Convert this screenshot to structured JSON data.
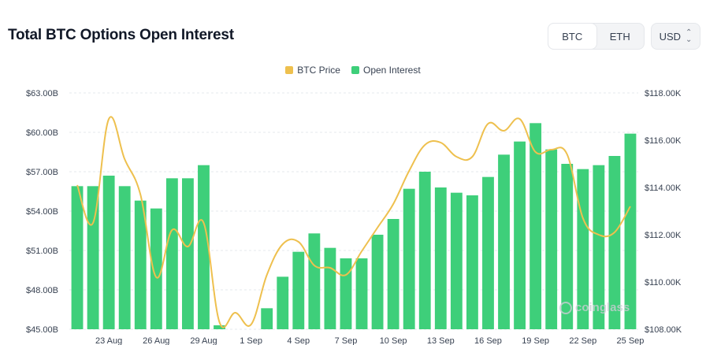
{
  "header": {
    "title": "Total BTC Options Open Interest",
    "asset_tabs": [
      {
        "label": "BTC",
        "active": true
      },
      {
        "label": "ETH",
        "active": false
      }
    ],
    "currency": {
      "label": "USD",
      "icon": "chevron-up-down-icon"
    }
  },
  "watermark": "coinglass",
  "colors": {
    "oi": "#3ecf7a",
    "price": "#eec04e",
    "grid": "#e6e8ec",
    "axis_text": "#374151"
  },
  "chart_data": {
    "type": "bar",
    "title": "Total BTC Options Open Interest",
    "legend": [
      "BTC Price",
      "Open Interest"
    ],
    "legend_position": "top-center",
    "x_tick_labels": [
      "23 Aug",
      "26 Aug",
      "29 Aug",
      "1 Sep",
      "4 Sep",
      "7 Sep",
      "10 Sep",
      "13 Sep",
      "16 Sep",
      "19 Sep",
      "22 Sep",
      "25 Sep"
    ],
    "categories": [
      "21 Aug",
      "22 Aug",
      "23 Aug",
      "24 Aug",
      "25 Aug",
      "26 Aug",
      "27 Aug",
      "28 Aug",
      "29 Aug",
      "30 Aug",
      "31 Aug",
      "1 Sep",
      "2 Sep",
      "3 Sep",
      "4 Sep",
      "5 Sep",
      "6 Sep",
      "7 Sep",
      "8 Sep",
      "9 Sep",
      "10 Sep",
      "11 Sep",
      "12 Sep",
      "13 Sep",
      "14 Sep",
      "15 Sep",
      "16 Sep",
      "17 Sep",
      "18 Sep",
      "19 Sep",
      "20 Sep",
      "21 Sep",
      "22 Sep",
      "23 Sep",
      "24 Sep",
      "25 Sep"
    ],
    "y_left": {
      "ticks": [
        "$45.00B",
        "$48.00B",
        "$51.00B",
        "$54.00B",
        "$57.00B",
        "$60.00B",
        "$63.00B"
      ],
      "range": [
        45,
        63
      ],
      "unit": "B USD"
    },
    "y_right": {
      "ticks": [
        "$108.00K",
        "$110.00K",
        "$112.00K",
        "$114.00K",
        "$116.00K",
        "$118.00K"
      ],
      "range": [
        108000,
        118000
      ],
      "unit": "USD"
    },
    "grid": true,
    "series": [
      {
        "name": "Open Interest",
        "type": "bar",
        "axis": "left",
        "values": [
          55.9,
          55.9,
          56.7,
          55.9,
          54.8,
          54.2,
          56.5,
          56.5,
          57.5,
          45.3,
          45.0,
          44.9,
          46.6,
          49.0,
          50.9,
          52.3,
          51.2,
          50.4,
          50.4,
          52.2,
          53.4,
          55.7,
          57.0,
          55.8,
          55.4,
          55.2,
          56.6,
          58.3,
          59.3,
          60.7,
          58.7,
          57.6,
          57.2,
          57.5,
          58.2,
          59.9
        ]
      },
      {
        "name": "BTC Price",
        "type": "line",
        "axis": "right",
        "values": [
          114100,
          112500,
          116900,
          115200,
          113700,
          110200,
          112200,
          111500,
          112500,
          108300,
          108700,
          108200,
          110300,
          111600,
          111700,
          110700,
          110600,
          110300,
          111300,
          112300,
          113300,
          114700,
          115800,
          115900,
          115300,
          115300,
          116700,
          116400,
          116900,
          115500,
          115600,
          115400,
          112700,
          112000,
          112100,
          113200
        ]
      }
    ]
  }
}
